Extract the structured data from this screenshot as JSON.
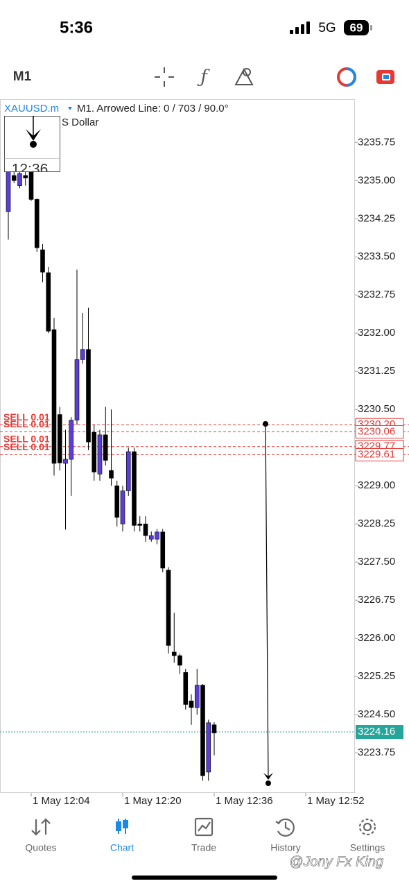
{
  "status_bar": {
    "time": "5:36",
    "network": "5G",
    "battery": "69"
  },
  "toolbar": {
    "timeframe": "M1"
  },
  "chart_header": {
    "symbol": "XAUUSD.m",
    "object_info": "M1. Arrowed Line: 0 / 703 / 90.0°",
    "description": "S Dollar",
    "popup_time": "12:36"
  },
  "chart_data": {
    "type": "candlestick",
    "x": [
      "1 May 12:00",
      "1 May 12:01",
      "1 May 12:02",
      "1 May 12:03",
      "1 May 12:04",
      "1 May 12:05",
      "1 May 12:06",
      "1 May 12:07",
      "1 May 12:08",
      "1 May 12:09",
      "1 May 12:10",
      "1 May 12:11",
      "1 May 12:12",
      "1 May 12:13",
      "1 May 12:14",
      "1 May 12:15",
      "1 May 12:16",
      "1 May 12:17",
      "1 May 12:18",
      "1 May 12:19",
      "1 May 12:20",
      "1 May 12:21",
      "1 May 12:22",
      "1 May 12:23",
      "1 May 12:24",
      "1 May 12:25",
      "1 May 12:26",
      "1 May 12:27",
      "1 May 12:28",
      "1 May 12:29",
      "1 May 12:30",
      "1 May 12:31",
      "1 May 12:32",
      "1 May 12:33",
      "1 May 12:34",
      "1 May 12:35",
      "1 May 12:36"
    ],
    "open": [
      3234.39,
      3235.1,
      3234.9,
      3235.1,
      3235.2,
      3234.63,
      3233.64,
      3233.19,
      3232.07,
      3230.4,
      3229.44,
      3229.52,
      3230.29,
      3231.48,
      3231.68,
      3230.05,
      3229.23,
      3230.0,
      3229.3,
      3229.0,
      3228.25,
      3228.9,
      3229.67,
      3228.25,
      3228.25,
      3227.95,
      3227.95,
      3228.09,
      3227.34,
      3225.73,
      3225.66,
      3225.33,
      3224.77,
      3224.64,
      3225.08,
      3223.37,
      3224.3
    ],
    "high": [
      3235.2,
      3235.2,
      3235.2,
      3235.3,
      3235.3,
      3234.65,
      3233.75,
      3233.3,
      3232.3,
      3230.55,
      3230.1,
      3230.35,
      3233.25,
      3232.4,
      3232.5,
      3230.2,
      3230.1,
      3230.55,
      3230.5,
      3229.1,
      3229.0,
      3229.75,
      3229.75,
      3228.4,
      3228.4,
      3228.1,
      3228.15,
      3228.15,
      3227.4,
      3226.5,
      3225.7,
      3225.4,
      3224.9,
      3225.4,
      3225.1,
      3224.4,
      3224.35
    ],
    "low": [
      3233.84,
      3234.95,
      3234.85,
      3234.9,
      3234.6,
      3233.6,
      3233.0,
      3232.0,
      3229.2,
      3229.3,
      3228.14,
      3228.8,
      3230.2,
      3231.4,
      3229.7,
      3229.1,
      3229.1,
      3229.4,
      3229.0,
      3228.2,
      3228.1,
      3228.8,
      3228.1,
      3228.1,
      3227.9,
      3227.9,
      3227.85,
      3227.3,
      3225.7,
      3225.52,
      3225.3,
      3224.6,
      3224.3,
      3224.5,
      3223.2,
      3223.2,
      3223.7
    ],
    "close": [
      3235.2,
      3235.0,
      3235.14,
      3235.05,
      3234.63,
      3233.68,
      3233.2,
      3232.04,
      3229.44,
      3229.45,
      3229.52,
      3230.29,
      3231.48,
      3231.68,
      3229.86,
      3229.27,
      3230.0,
      3229.5,
      3229.15,
      3228.38,
      3228.9,
      3229.67,
      3228.22,
      3228.22,
      3228.02,
      3228.02,
      3228.09,
      3227.38,
      3225.86,
      3225.66,
      3225.47,
      3224.7,
      3224.64,
      3225.08,
      3223.3,
      3224.34,
      3224.14
    ],
    "up_color": "#5a3ed6",
    "down_color": "#000000",
    "ylim": [
      3222.96,
      3236.6
    ],
    "yticks": [
      3235.75,
      {
        "value": 3235,
        "label": "3235.00"
      },
      3234.25,
      {
        "value": 3233.5,
        "label": "3233.50"
      },
      3232.75,
      {
        "value": 3232,
        "label": "3232.00"
      },
      3231.25,
      {
        "value": 3230.5,
        "label": "3230.50"
      },
      {
        "value": 3229,
        "label": "3229.00"
      },
      3228.25,
      {
        "value": 3227.5,
        "label": "3227.50"
      },
      3226.75,
      {
        "value": 3226,
        "label": "3226.00"
      },
      3225.25,
      {
        "value": 3224.5,
        "label": "3224.50"
      },
      3223.75
    ],
    "xticks": [
      "1 May 12:04",
      "1 May 12:20",
      "1 May 12:36",
      "1 May 12:52"
    ],
    "orders": [
      {
        "name": "SELL 0.01",
        "value": 3230.2,
        "label": "3230.20"
      },
      {
        "name": "SELL 0.01",
        "value": 3230.06,
        "label": "3230.06"
      },
      {
        "name": "SELL 0.01",
        "value": 3229.77,
        "label": "3229.77"
      },
      {
        "name": "SELL 0.01",
        "value": 3229.61,
        "label": "3229.61"
      }
    ],
    "order_color": "#e53935",
    "bid": 3224.16,
    "bid_color": "#26a69a"
  },
  "bottom_nav": {
    "tabs": [
      "Quotes",
      "Chart",
      "Trade",
      "History",
      "Settings"
    ],
    "active": 1
  },
  "watermark": "@Jony Fx King"
}
